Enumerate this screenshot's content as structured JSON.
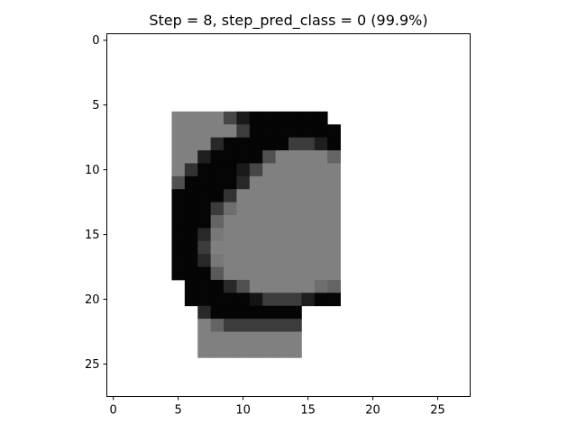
{
  "chart_data": {
    "type": "heatmap",
    "title": "Step = 8, step_pred_class = 0 (99.9%)",
    "xlabel": "",
    "ylabel": "",
    "xlim": [
      -0.5,
      27.5
    ],
    "ylim": [
      27.5,
      -0.5
    ],
    "x_ticks": [
      0,
      5,
      10,
      15,
      20,
      25
    ],
    "y_ticks": [
      0,
      5,
      10,
      15,
      20,
      25
    ],
    "x_tick_labels": [
      "0",
      "5",
      "10",
      "15",
      "20",
      "25"
    ],
    "y_tick_labels": [
      "0",
      "5",
      "10",
      "15",
      "20",
      "25"
    ],
    "colormap": "gray",
    "grid": false,
    "value_range": [
      0,
      255
    ],
    "background_value": 255,
    "default_cell_value": 128,
    "cells": [
      {
        "row": 6,
        "cols": [
          [
            5,
            8,
            128
          ],
          [
            9,
            9,
            70
          ],
          [
            10,
            10,
            25
          ],
          [
            11,
            16,
            5
          ]
        ]
      },
      {
        "row": 7,
        "cols": [
          [
            5,
            9,
            128
          ],
          [
            10,
            10,
            60
          ],
          [
            11,
            17,
            5
          ]
        ]
      },
      {
        "row": 8,
        "cols": [
          [
            5,
            7,
            128
          ],
          [
            8,
            8,
            40
          ],
          [
            9,
            13,
            5
          ],
          [
            14,
            15,
            60
          ],
          [
            16,
            16,
            30
          ],
          [
            17,
            17,
            5
          ]
        ]
      },
      {
        "row": 9,
        "cols": [
          [
            5,
            6,
            128
          ],
          [
            7,
            7,
            30
          ],
          [
            8,
            11,
            5
          ],
          [
            12,
            12,
            80
          ],
          [
            13,
            16,
            128
          ],
          [
            17,
            17,
            100
          ]
        ]
      },
      {
        "row": 10,
        "cols": [
          [
            5,
            5,
            128
          ],
          [
            6,
            6,
            50
          ],
          [
            7,
            9,
            5
          ],
          [
            10,
            10,
            25
          ],
          [
            11,
            11,
            70
          ],
          [
            12,
            17,
            128
          ]
        ]
      },
      {
        "row": 11,
        "cols": [
          [
            5,
            5,
            80
          ],
          [
            6,
            9,
            5
          ],
          [
            10,
            10,
            40
          ],
          [
            11,
            17,
            128
          ]
        ]
      },
      {
        "row": 12,
        "cols": [
          [
            5,
            8,
            5
          ],
          [
            9,
            9,
            50
          ],
          [
            10,
            17,
            128
          ]
        ]
      },
      {
        "row": 13,
        "cols": [
          [
            5,
            7,
            5
          ],
          [
            8,
            8,
            60
          ],
          [
            9,
            9,
            110
          ],
          [
            10,
            17,
            128
          ]
        ]
      },
      {
        "row": 14,
        "cols": [
          [
            5,
            7,
            5
          ],
          [
            8,
            8,
            100
          ],
          [
            9,
            17,
            128
          ]
        ]
      },
      {
        "row": 15,
        "cols": [
          [
            5,
            6,
            5
          ],
          [
            7,
            7,
            40
          ],
          [
            8,
            8,
            120
          ],
          [
            9,
            17,
            128
          ]
        ]
      },
      {
        "row": 16,
        "cols": [
          [
            5,
            6,
            5
          ],
          [
            7,
            7,
            60
          ],
          [
            8,
            17,
            128
          ]
        ]
      },
      {
        "row": 17,
        "cols": [
          [
            5,
            6,
            5
          ],
          [
            7,
            7,
            40
          ],
          [
            8,
            8,
            120
          ],
          [
            9,
            17,
            128
          ]
        ]
      },
      {
        "row": 18,
        "cols": [
          [
            5,
            7,
            5
          ],
          [
            8,
            8,
            90
          ],
          [
            9,
            17,
            128
          ]
        ]
      },
      {
        "row": 19,
        "cols": [
          [
            6,
            8,
            5
          ],
          [
            9,
            9,
            40
          ],
          [
            10,
            10,
            80
          ],
          [
            11,
            15,
            128
          ],
          [
            16,
            16,
            110
          ],
          [
            17,
            17,
            100
          ]
        ]
      },
      {
        "row": 20,
        "cols": [
          [
            6,
            10,
            5
          ],
          [
            11,
            11,
            20
          ],
          [
            12,
            14,
            60
          ],
          [
            15,
            15,
            30
          ],
          [
            16,
            17,
            5
          ]
        ]
      },
      {
        "row": 21,
        "cols": [
          [
            7,
            7,
            40
          ],
          [
            8,
            14,
            5
          ]
        ]
      },
      {
        "row": 22,
        "cols": [
          [
            7,
            7,
            128
          ],
          [
            8,
            8,
            100
          ],
          [
            9,
            14,
            60
          ]
        ]
      },
      {
        "row": 23,
        "cols": [
          [
            7,
            14,
            128
          ]
        ]
      },
      {
        "row": 24,
        "cols": [
          [
            7,
            14,
            128
          ]
        ]
      }
    ]
  }
}
